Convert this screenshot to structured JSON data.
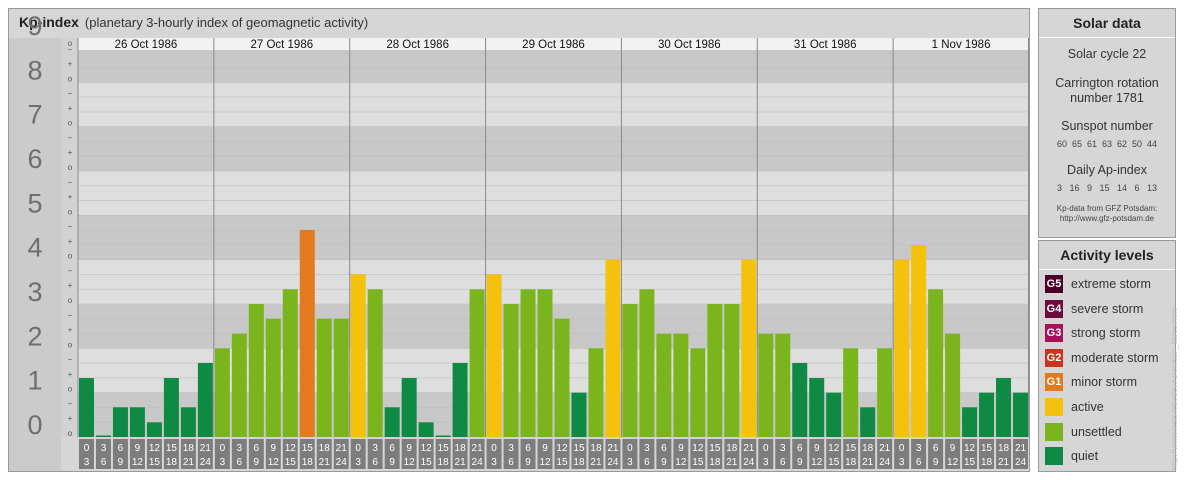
{
  "header": {
    "title": "Kp-index",
    "subtitle": "(planetary 3-hourly index of geomagnetic activity)"
  },
  "chart_data": {
    "type": "bar",
    "ylim": [
      0,
      9
    ],
    "y_ticks": [
      "0",
      "1",
      "2",
      "3",
      "4",
      "5",
      "6",
      "7",
      "8",
      "9"
    ],
    "minor_marks": [
      "o",
      "+",
      "−"
    ],
    "days": [
      "26 Oct 1986",
      "27 Oct 1986",
      "28 Oct 1986",
      "29 Oct 1986",
      "30 Oct 1986",
      "31 Oct 1986",
      "1 Nov 1986"
    ],
    "slot_top_labels": [
      "0",
      "3",
      "6",
      "9",
      "12",
      "15",
      "18",
      "21"
    ],
    "slot_bottom_labels": [
      "3",
      "6",
      "9",
      "12",
      "15",
      "18",
      "21",
      "24"
    ],
    "values": [
      1.33,
      0.0,
      0.67,
      0.67,
      0.33,
      1.33,
      0.67,
      1.67,
      2.0,
      2.33,
      3.0,
      2.67,
      3.33,
      4.67,
      2.67,
      2.67,
      3.67,
      3.33,
      0.67,
      1.33,
      0.33,
      0.0,
      1.67,
      3.33,
      3.67,
      3.0,
      3.33,
      3.33,
      2.67,
      1.0,
      2.0,
      4.0,
      3.0,
      3.33,
      2.33,
      2.33,
      2.0,
      3.0,
      3.0,
      4.0,
      2.33,
      2.33,
      1.67,
      1.33,
      1.0,
      2.0,
      0.67,
      2.0,
      4.0,
      4.33,
      3.33,
      2.33,
      0.67,
      1.0,
      1.33,
      1.0
    ],
    "colors": {
      "quiet": "#0f8a44",
      "unsettled": "#7ab51d",
      "active": "#f4c20d",
      "minor_storm": "#e47a1f",
      "moderate_storm": "#c9341b",
      "strong_storm": "#a8105c",
      "severe_storm": "#6d0a3e",
      "extreme_storm": "#4b0028"
    }
  },
  "solar": {
    "title": "Solar data",
    "cycle": "Solar cycle 22",
    "carrington_line1": "Carrington rotation",
    "carrington_line2": "number 1781",
    "sunspot_label": "Sunspot number",
    "sunspot_values": "60  65  61  63  62  50  44",
    "ap_label": "Daily Ap-index",
    "ap_values": "3   16   9   15   14   6   13",
    "source_line1": "Kp-data from GFZ Potsdam:",
    "source_line2": "http://www.gfz-potsdam.de"
  },
  "activity": {
    "title": "Activity levels",
    "items": [
      {
        "code": "G5",
        "label": "extreme storm",
        "color": "#4b0028"
      },
      {
        "code": "G4",
        "label": "severe storm",
        "color": "#6d0a3e"
      },
      {
        "code": "G3",
        "label": "strong storm",
        "color": "#a8105c"
      },
      {
        "code": "G2",
        "label": "moderate storm",
        "color": "#c9341b"
      },
      {
        "code": "G1",
        "label": "minor storm",
        "color": "#e47a1f"
      },
      {
        "code": "",
        "label": "active",
        "color": "#f4c20d"
      },
      {
        "code": "",
        "label": "unsettled",
        "color": "#7ab51d"
      },
      {
        "code": "",
        "label": "quiet",
        "color": "#0f8a44"
      }
    ]
  },
  "watermark": "http://www.tesis.lebedev.ru/en/sun_flares.html"
}
